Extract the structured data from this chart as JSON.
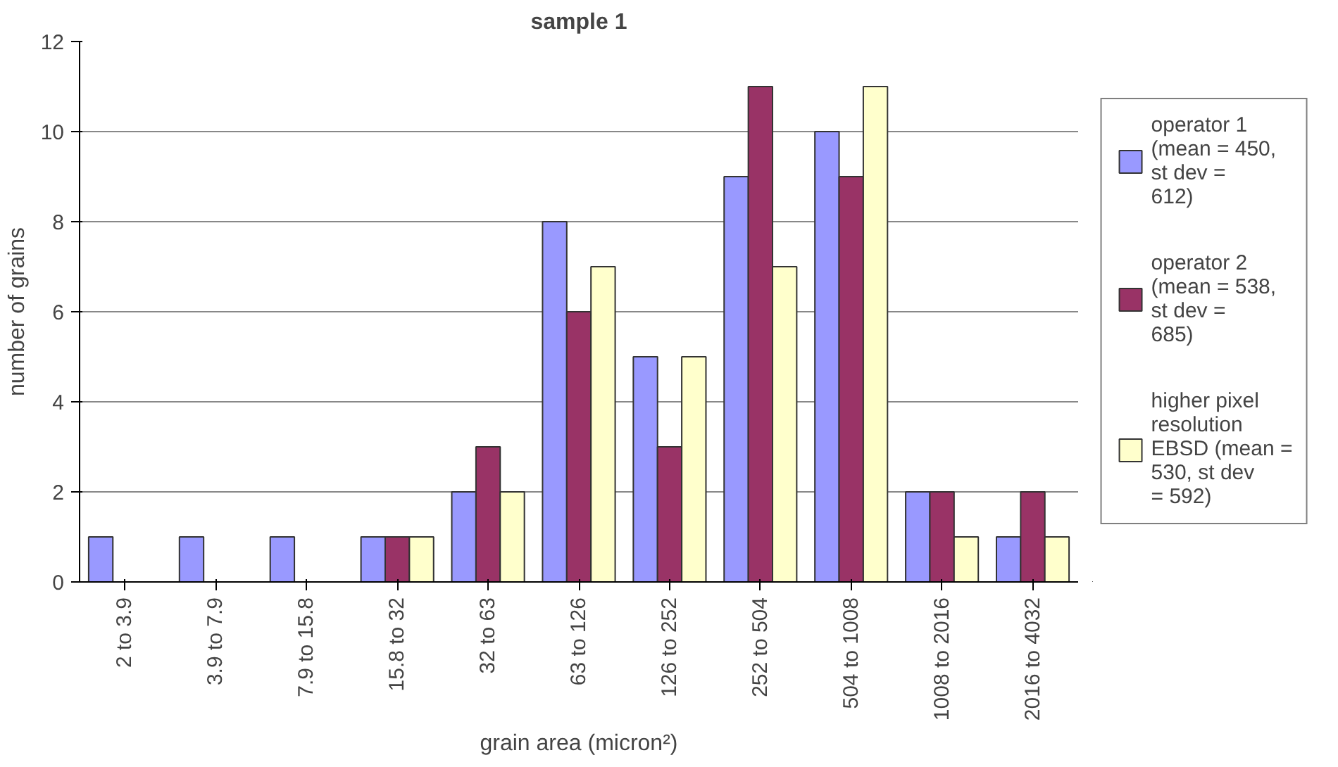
{
  "chart_data": {
    "type": "bar",
    "title": "sample 1",
    "xlabel": "grain area (micron²)",
    "ylabel": "number of grains",
    "categories": [
      "2 to 3.9",
      "3.9 to 7.9",
      "7.9 to 15.8",
      "15.8 to 32",
      "32 to 63",
      "63 to 126",
      "126 to 252",
      "252 to 504",
      "504 to 1008",
      "1008 to 2016",
      "2016 to 4032"
    ],
    "series": [
      {
        "name": "operator 1 (mean = 450, st dev = 612)",
        "color": "#9999ff",
        "values": [
          1,
          1,
          1,
          1,
          2,
          8,
          5,
          9,
          10,
          2,
          1
        ]
      },
      {
        "name": "operator 2 (mean = 538, st dev = 685)",
        "color": "#993366",
        "values": [
          0,
          0,
          0,
          1,
          3,
          6,
          3,
          11,
          9,
          2,
          2
        ]
      },
      {
        "name": "higher pixel resolution EBSD (mean = 530, st dev = 592)",
        "color": "#ffffcc",
        "values": [
          0,
          0,
          0,
          1,
          2,
          7,
          5,
          7,
          11,
          1,
          1
        ]
      }
    ],
    "ylim": [
      0,
      12
    ],
    "yticks": [
      0,
      2,
      4,
      6,
      8,
      10,
      12
    ],
    "grid": "y",
    "legend": "right"
  }
}
